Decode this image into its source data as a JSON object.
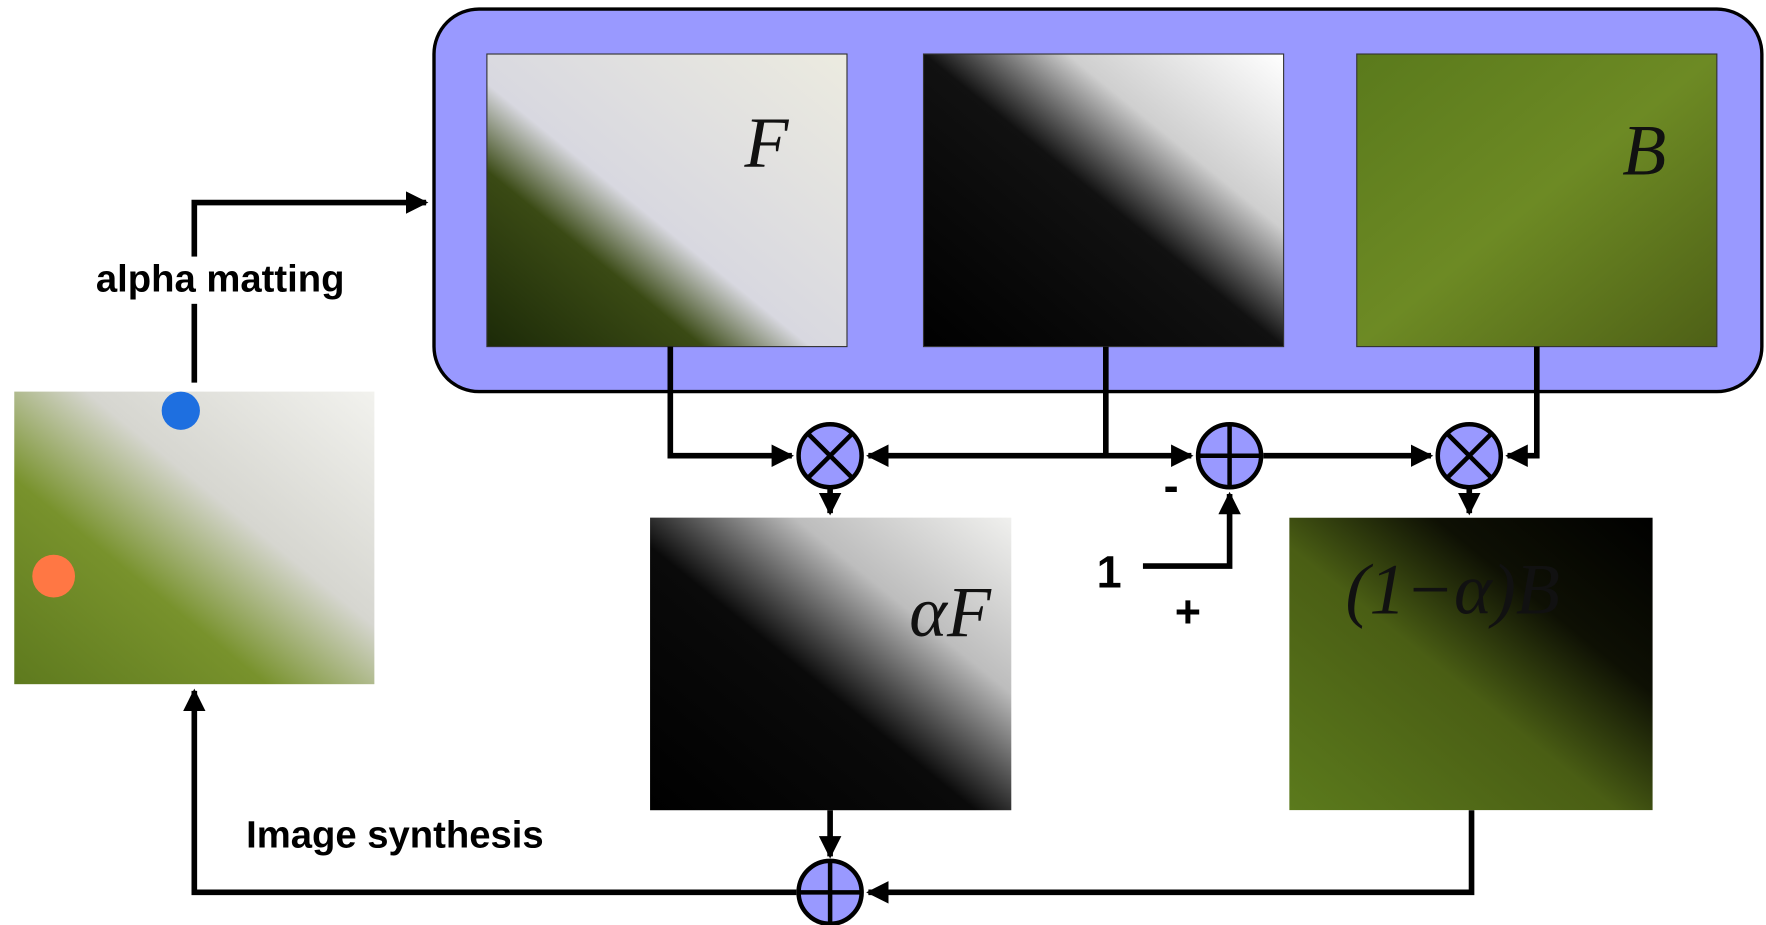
{
  "images": {
    "foreground": "F",
    "background": "B",
    "alpha_foreground": "αF",
    "alpha_background": "(1−α)B"
  },
  "edges": {
    "alpha_matting": "alpha matting",
    "image_synthesis": "Image synthesis"
  },
  "operators": {
    "constant": "1",
    "minus": "-",
    "plus": "+"
  }
}
